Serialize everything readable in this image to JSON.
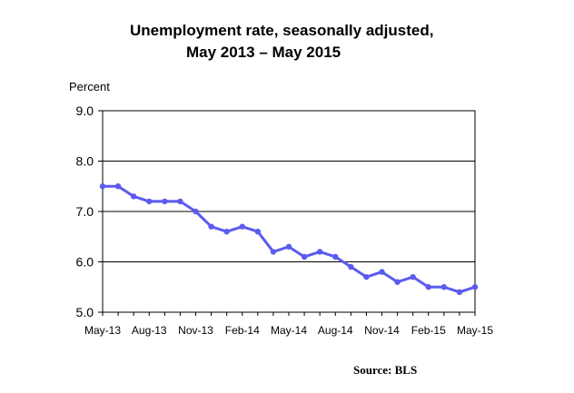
{
  "chart_data": {
    "type": "line",
    "title_line1": "Unemployment rate, seasonally adjusted,",
    "title_line2": "May 2013 – May 2015",
    "ylabel": "Percent",
    "xlabel": "",
    "ylim": [
      5.0,
      9.0
    ],
    "yticks": [
      "5.0",
      "6.0",
      "7.0",
      "8.0",
      "9.0"
    ],
    "ytick_values": [
      5.0,
      6.0,
      7.0,
      8.0,
      9.0
    ],
    "xtick_labels": [
      "May-13",
      "Aug-13",
      "Nov-13",
      "Feb-14",
      "May-14",
      "Aug-14",
      "Nov-14",
      "Feb-15",
      "May-15"
    ],
    "xtick_indices": [
      0,
      3,
      6,
      9,
      12,
      15,
      18,
      21,
      24
    ],
    "grid": "horizontal",
    "series": [
      {
        "name": "Unemployment rate",
        "color": "#5b5bf0",
        "values": [
          7.5,
          7.5,
          7.3,
          7.2,
          7.2,
          7.2,
          7.0,
          6.7,
          6.6,
          6.7,
          6.6,
          6.2,
          6.3,
          6.1,
          6.2,
          6.1,
          5.9,
          5.7,
          5.8,
          5.6,
          5.7,
          5.5,
          5.5,
          5.4,
          5.5
        ]
      }
    ],
    "source": "Source:  BLS"
  }
}
